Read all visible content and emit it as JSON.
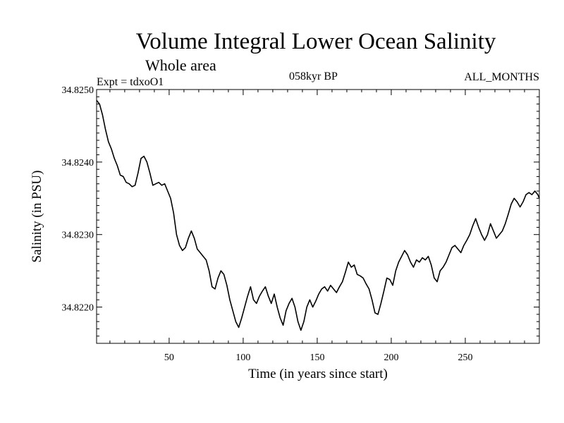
{
  "chart_data": {
    "type": "line",
    "title": "Volume Integral Lower Ocean Salinity",
    "subtitle": "Whole area",
    "experiment_label": "Expt = tdxoO1",
    "period_label": "058kyr BP",
    "months_label": "ALL_MONTHS",
    "xlabel": "Time (in years since start)",
    "ylabel": "Salinity (in PSU)",
    "xlim": [
      1,
      300
    ],
    "ylim": [
      34.8215,
      34.825
    ],
    "x_ticks": [
      50,
      100,
      150,
      200,
      250
    ],
    "y_ticks": [
      34.822,
      34.823,
      34.824,
      34.825
    ],
    "y_tick_labels": [
      "34.8220",
      "34.8230",
      "34.8240",
      "34.8250"
    ],
    "grid": false,
    "line_color": "#000000",
    "series": [
      {
        "name": "Salinity",
        "points": [
          [
            1,
            34.82485
          ],
          [
            3,
            34.8248
          ],
          [
            5,
            34.82465
          ],
          [
            7,
            34.82445
          ],
          [
            9,
            34.82428
          ],
          [
            11,
            34.82418
          ],
          [
            13,
            34.82405
          ],
          [
            15,
            34.82395
          ],
          [
            17,
            34.82382
          ],
          [
            19,
            34.8238
          ],
          [
            21,
            34.82372
          ],
          [
            23,
            34.8237
          ],
          [
            25,
            34.82366
          ],
          [
            27,
            34.82368
          ],
          [
            29,
            34.82385
          ],
          [
            31,
            34.82405
          ],
          [
            33,
            34.82408
          ],
          [
            35,
            34.824
          ],
          [
            37,
            34.82385
          ],
          [
            39,
            34.82368
          ],
          [
            41,
            34.8237
          ],
          [
            43,
            34.82372
          ],
          [
            45,
            34.82368
          ],
          [
            47,
            34.8237
          ],
          [
            49,
            34.8236
          ],
          [
            51,
            34.8235
          ],
          [
            53,
            34.8233
          ],
          [
            55,
            34.823
          ],
          [
            57,
            34.82285
          ],
          [
            59,
            34.82278
          ],
          [
            61,
            34.82282
          ],
          [
            63,
            34.82295
          ],
          [
            65,
            34.82305
          ],
          [
            67,
            34.82295
          ],
          [
            69,
            34.8228
          ],
          [
            71,
            34.82275
          ],
          [
            73,
            34.8227
          ],
          [
            75,
            34.82265
          ],
          [
            77,
            34.8225
          ],
          [
            79,
            34.82228
          ],
          [
            81,
            34.82225
          ],
          [
            83,
            34.8224
          ],
          [
            85,
            34.8225
          ],
          [
            87,
            34.82245
          ],
          [
            89,
            34.8223
          ],
          [
            91,
            34.8221
          ],
          [
            93,
            34.82195
          ],
          [
            95,
            34.8218
          ],
          [
            97,
            34.82172
          ],
          [
            99,
            34.82185
          ],
          [
            101,
            34.822
          ],
          [
            103,
            34.82215
          ],
          [
            105,
            34.82228
          ],
          [
            107,
            34.8221
          ],
          [
            109,
            34.82205
          ],
          [
            111,
            34.82215
          ],
          [
            113,
            34.82222
          ],
          [
            115,
            34.82228
          ],
          [
            117,
            34.82215
          ],
          [
            119,
            34.82205
          ],
          [
            121,
            34.82218
          ],
          [
            123,
            34.822
          ],
          [
            125,
            34.82185
          ],
          [
            127,
            34.82175
          ],
          [
            129,
            34.82195
          ],
          [
            131,
            34.82205
          ],
          [
            133,
            34.82212
          ],
          [
            135,
            34.822
          ],
          [
            137,
            34.8218
          ],
          [
            139,
            34.82168
          ],
          [
            141,
            34.8218
          ],
          [
            143,
            34.822
          ],
          [
            145,
            34.8221
          ],
          [
            147,
            34.822
          ],
          [
            149,
            34.82208
          ],
          [
            151,
            34.82218
          ],
          [
            153,
            34.82225
          ],
          [
            155,
            34.82228
          ],
          [
            157,
            34.82222
          ],
          [
            159,
            34.8223
          ],
          [
            161,
            34.82225
          ],
          [
            163,
            34.8222
          ],
          [
            165,
            34.82228
          ],
          [
            167,
            34.82235
          ],
          [
            169,
            34.82248
          ],
          [
            171,
            34.82262
          ],
          [
            173,
            34.82255
          ],
          [
            175,
            34.82258
          ],
          [
            177,
            34.82245
          ],
          [
            179,
            34.82243
          ],
          [
            181,
            34.8224
          ],
          [
            183,
            34.82232
          ],
          [
            185,
            34.82225
          ],
          [
            187,
            34.8221
          ],
          [
            189,
            34.82192
          ],
          [
            191,
            34.8219
          ],
          [
            193,
            34.82205
          ],
          [
            195,
            34.82222
          ],
          [
            197,
            34.8224
          ],
          [
            199,
            34.82238
          ],
          [
            201,
            34.8223
          ],
          [
            203,
            34.8225
          ],
          [
            205,
            34.82262
          ],
          [
            207,
            34.8227
          ],
          [
            209,
            34.82278
          ],
          [
            211,
            34.82272
          ],
          [
            213,
            34.82262
          ],
          [
            215,
            34.82255
          ],
          [
            217,
            34.82265
          ],
          [
            219,
            34.82262
          ],
          [
            221,
            34.82268
          ],
          [
            223,
            34.82265
          ],
          [
            225,
            34.8227
          ],
          [
            227,
            34.82258
          ],
          [
            229,
            34.8224
          ],
          [
            231,
            34.82235
          ],
          [
            233,
            34.8225
          ],
          [
            235,
            34.82255
          ],
          [
            237,
            34.82262
          ],
          [
            239,
            34.82272
          ],
          [
            241,
            34.82282
          ],
          [
            243,
            34.82285
          ],
          [
            245,
            34.8228
          ],
          [
            247,
            34.82275
          ],
          [
            249,
            34.82285
          ],
          [
            251,
            34.82292
          ],
          [
            253,
            34.823
          ],
          [
            255,
            34.82312
          ],
          [
            257,
            34.82322
          ],
          [
            259,
            34.8231
          ],
          [
            261,
            34.823
          ],
          [
            263,
            34.82292
          ],
          [
            265,
            34.823
          ],
          [
            267,
            34.82315
          ],
          [
            269,
            34.82305
          ],
          [
            271,
            34.82295
          ],
          [
            273,
            34.823
          ],
          [
            275,
            34.82305
          ],
          [
            277,
            34.82315
          ],
          [
            279,
            34.82328
          ],
          [
            281,
            34.82342
          ],
          [
            283,
            34.8235
          ],
          [
            285,
            34.82345
          ],
          [
            287,
            34.82338
          ],
          [
            289,
            34.82345
          ],
          [
            291,
            34.82355
          ],
          [
            293,
            34.82358
          ],
          [
            295,
            34.82355
          ],
          [
            297,
            34.8236
          ],
          [
            299,
            34.82355
          ],
          [
            300,
            34.8235
          ]
        ]
      }
    ]
  }
}
